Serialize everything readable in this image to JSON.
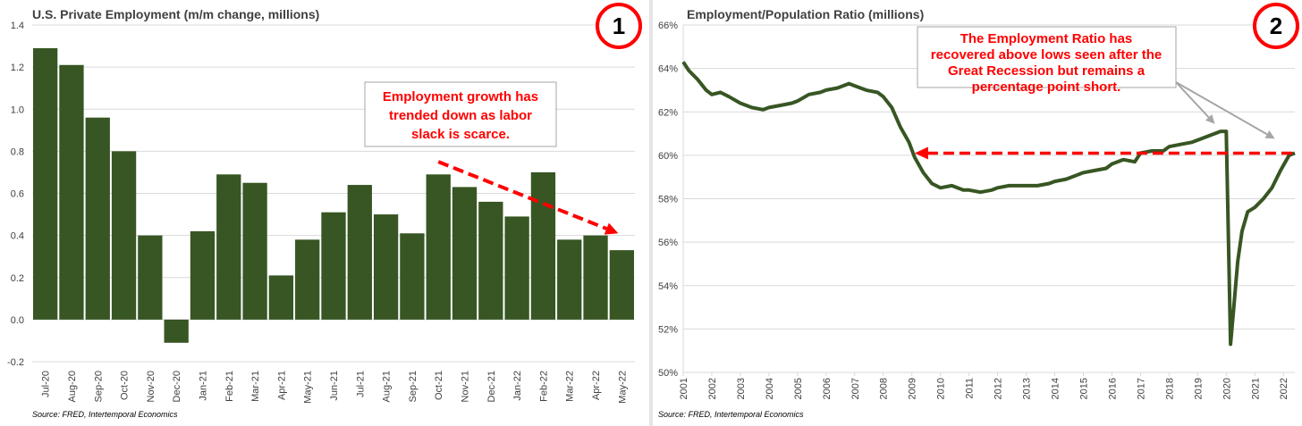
{
  "colors": {
    "bar": "#375623",
    "line": "#375623",
    "annotation": "#ff0000",
    "arrow_gray": "#a6a6a6",
    "grid": "#d9d9d9",
    "badge_ring": "#ff0000"
  },
  "chart_data": [
    {
      "type": "bar",
      "title": "U.S. Private Employment (m/m change, millions)",
      "badge": "1",
      "source": "Source: FRED, Intertemporal Economics",
      "annotation": [
        "Employment growth has",
        "trended down as labor",
        "slack is scarce."
      ],
      "ylim": [
        -0.2,
        1.4
      ],
      "yticks": [
        -0.2,
        0.0,
        0.2,
        0.4,
        0.6,
        0.8,
        1.0,
        1.2,
        1.4
      ],
      "ytick_labels": [
        "-0.2",
        "0.0",
        "0.2",
        "0.4",
        "0.6",
        "0.8",
        "1.0",
        "1.2",
        "1.4"
      ],
      "grid": true,
      "categories": [
        "Jul-20",
        "Aug-20",
        "Sep-20",
        "Oct-20",
        "Nov-20",
        "Dec-20",
        "Jan-21",
        "Feb-21",
        "Mar-21",
        "Apr-21",
        "May-21",
        "Jun-21",
        "Jul-21",
        "Aug-21",
        "Sep-21",
        "Oct-21",
        "Nov-21",
        "Dec-21",
        "Jan-22",
        "Feb-22",
        "Mar-22",
        "Apr-22",
        "May-22"
      ],
      "values": [
        1.29,
        1.21,
        0.96,
        0.8,
        0.4,
        -0.11,
        0.42,
        0.69,
        0.65,
        0.21,
        0.38,
        0.51,
        0.64,
        0.5,
        0.41,
        0.69,
        0.63,
        0.56,
        0.49,
        0.7,
        0.38,
        0.4,
        0.33
      ],
      "trend_arrow": {
        "from_category": "Oct-21",
        "from_value": 0.75,
        "to_category": "May-22",
        "to_value": 0.41
      }
    },
    {
      "type": "line",
      "title": "Employment/Population Ratio (millions)",
      "badge": "2",
      "source": "Source: FRED, Intertemporal Economics",
      "annotation": [
        "The Employment Ratio has",
        "recovered above lows seen after the",
        "Great Recession but remains a",
        "percentage point short."
      ],
      "ylim": [
        50,
        66
      ],
      "yticks": [
        50,
        52,
        54,
        56,
        58,
        60,
        62,
        64,
        66
      ],
      "ytick_labels": [
        "50%",
        "52%",
        "54%",
        "56%",
        "58%",
        "60%",
        "62%",
        "64%",
        "66%"
      ],
      "xlim": [
        2001,
        2022.4
      ],
      "xticks": [
        2001,
        2002,
        2003,
        2004,
        2005,
        2006,
        2007,
        2008,
        2009,
        2010,
        2011,
        2012,
        2013,
        2014,
        2015,
        2016,
        2017,
        2018,
        2019,
        2020,
        2021,
        2022
      ],
      "xtick_labels": [
        "2001",
        "2002",
        "2003",
        "2004",
        "2005",
        "2006",
        "2007",
        "2008",
        "2009",
        "2010",
        "2011",
        "2012",
        "2013",
        "2014",
        "2015",
        "2016",
        "2017",
        "2018",
        "2019",
        "2020",
        "2021",
        "2022"
      ],
      "grid": true,
      "series": [
        {
          "x": [
            2001.0,
            2001.2,
            2001.5,
            2001.8,
            2002.0,
            2002.3,
            2002.6,
            2003.0,
            2003.4,
            2003.8,
            2004.0,
            2004.4,
            2004.8,
            2005.0,
            2005.4,
            2005.8,
            2006.0,
            2006.4,
            2006.8,
            2007.0,
            2007.4,
            2007.8,
            2008.0,
            2008.3,
            2008.6,
            2008.9,
            2009.1,
            2009.4,
            2009.7,
            2010.0,
            2010.4,
            2010.8,
            2011.0,
            2011.4,
            2011.8,
            2012.0,
            2012.4,
            2012.8,
            2013.0,
            2013.4,
            2013.8,
            2014.0,
            2014.4,
            2014.8,
            2015.0,
            2015.4,
            2015.8,
            2016.0,
            2016.4,
            2016.8,
            2017.0,
            2017.4,
            2017.8,
            2018.0,
            2018.4,
            2018.8,
            2019.0,
            2019.4,
            2019.8,
            2020.0,
            2020.15,
            2020.25,
            2020.4,
            2020.55,
            2020.75,
            2021.0,
            2021.3,
            2021.6,
            2021.9,
            2022.2,
            2022.4
          ],
          "y": [
            64.3,
            63.9,
            63.5,
            63.0,
            62.8,
            62.9,
            62.7,
            62.4,
            62.2,
            62.1,
            62.2,
            62.3,
            62.4,
            62.5,
            62.8,
            62.9,
            63.0,
            63.1,
            63.3,
            63.2,
            63.0,
            62.9,
            62.7,
            62.2,
            61.3,
            60.6,
            59.9,
            59.2,
            58.7,
            58.5,
            58.6,
            58.4,
            58.4,
            58.3,
            58.4,
            58.5,
            58.6,
            58.6,
            58.6,
            58.6,
            58.7,
            58.8,
            58.9,
            59.1,
            59.2,
            59.3,
            59.4,
            59.6,
            59.8,
            59.7,
            60.1,
            60.2,
            60.2,
            60.4,
            60.5,
            60.6,
            60.7,
            60.9,
            61.1,
            61.1,
            51.3,
            52.8,
            55.1,
            56.5,
            57.4,
            57.6,
            58.0,
            58.5,
            59.3,
            60.0,
            60.1
          ]
        }
      ],
      "reference_line": {
        "value": 60.1,
        "from_x": 2009.1,
        "to_x": 2022.4
      }
    }
  ]
}
